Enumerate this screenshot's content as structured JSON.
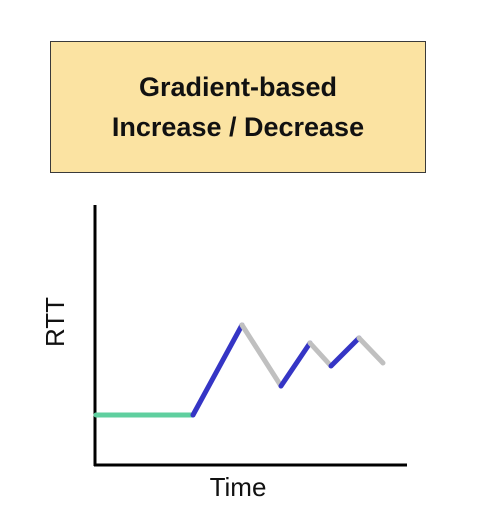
{
  "title": {
    "line1": "Gradient-based",
    "line2": "Increase / Decrease"
  },
  "axes": {
    "y_label": "RTT",
    "x_label": "Time"
  },
  "colors": {
    "title_background": "#fbe3a2",
    "baseline_segment": "#5fcf9f",
    "increase_segment": "#3535c5",
    "decrease_segment": "#c0c0c0",
    "axis": "#000000"
  }
}
